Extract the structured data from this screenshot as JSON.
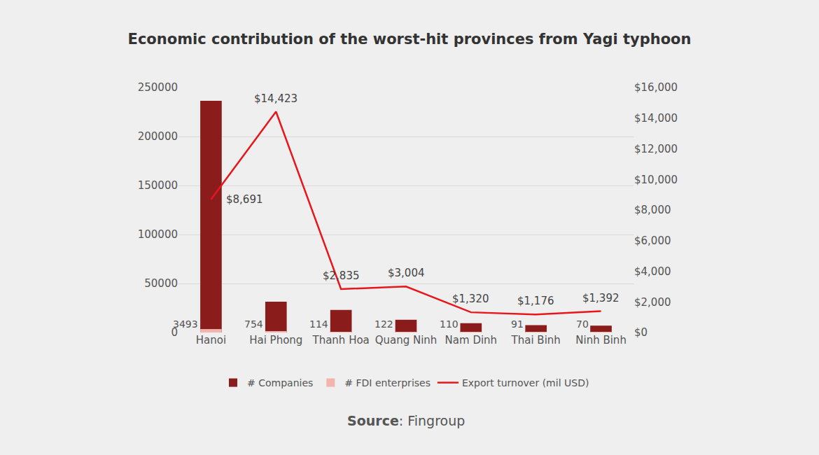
{
  "chart_data": {
    "type": "bar",
    "title": "Economic contribution of the worst-hit provinces from Yagi typhoon",
    "categories": [
      "Hanoi",
      "Hai Phong",
      "Thanh Hoa",
      "Quang Ninh",
      "Nam Dinh",
      "Thai Binh",
      "Ninh Binh"
    ],
    "series": [
      {
        "name": "# Companies",
        "type": "bar",
        "color": "#8b1c1c",
        "data_labels": false,
        "values": [
          236500,
          31500,
          23000,
          13000,
          9500,
          7500,
          7000
        ]
      },
      {
        "name": "# FDI enterprises",
        "type": "bar",
        "color": "#f2b5ae",
        "data_labels": true,
        "values": [
          3493,
          754,
          114,
          122,
          110,
          91,
          70
        ]
      },
      {
        "name": "Export turnover (mil USD)",
        "type": "line",
        "axis": "y2",
        "color": "#e8161b",
        "data_labels": true,
        "values": [
          8691,
          14423,
          2835,
          3004,
          1320,
          1176,
          1392
        ],
        "value_labels": [
          "$8,691",
          "$14,423",
          "$2,835",
          "$3,004",
          "$1,320",
          "$1,176",
          "$1,392"
        ]
      }
    ],
    "ylim": [
      0,
      250000
    ],
    "yticks": [
      0,
      50000,
      100000,
      150000,
      200000,
      250000
    ],
    "y2lim": [
      0,
      16000
    ],
    "y2ticks": [
      {
        "value": 0,
        "label": "$0"
      },
      {
        "value": 2000,
        "label": "$2,000"
      },
      {
        "value": 4000,
        "label": "$4,000"
      },
      {
        "value": 6000,
        "label": "$6,000"
      },
      {
        "value": 8000,
        "label": "$8,000"
      },
      {
        "value": 10000,
        "label": "$10,000"
      },
      {
        "value": 12000,
        "label": "$12,000"
      },
      {
        "value": 14000,
        "label": "$14,000"
      },
      {
        "value": 16000,
        "label": "$16,000"
      }
    ],
    "grid": true,
    "legend": "bottom",
    "stacked": false,
    "source": {
      "label": "Source",
      "text": ": Fingroup"
    }
  }
}
